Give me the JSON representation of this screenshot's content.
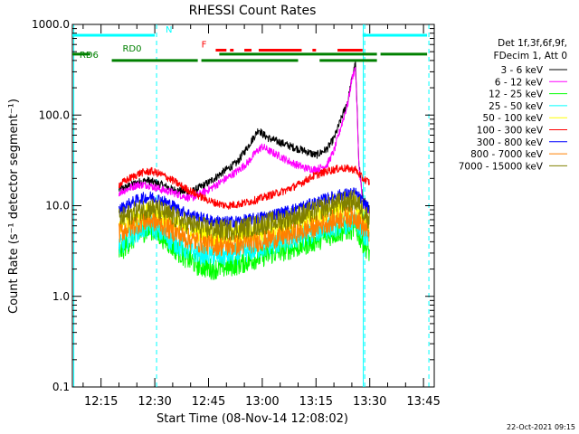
{
  "chart_data": {
    "type": "line",
    "title": "RHESSI Count Rates",
    "xlabel": "Start Time (08-Nov-14 12:08:02)",
    "ylabel": "Count Rate (s⁻¹ detector segment⁻¹)",
    "x_unit": "minutes since 12:00 UT",
    "xlim": [
      727,
      828
    ],
    "ylim": [
      0.1,
      1000
    ],
    "yscale": "log",
    "x_ticks": [
      {
        "t": 735,
        "label": "12:15"
      },
      {
        "t": 750,
        "label": "12:30"
      },
      {
        "t": 765,
        "label": "12:45"
      },
      {
        "t": 780,
        "label": "13:00"
      },
      {
        "t": 795,
        "label": "13:15"
      },
      {
        "t": 810,
        "label": "13:30"
      },
      {
        "t": 825,
        "label": "13:45"
      }
    ],
    "y_ticks": [
      {
        "v": 0.1,
        "label": "0.1"
      },
      {
        "v": 1,
        "label": "1.0"
      },
      {
        "v": 10,
        "label": "10.0"
      },
      {
        "v": 100,
        "label": "100.0"
      },
      {
        "v": 1000,
        "label": "1000.0"
      }
    ],
    "legend": {
      "placement": "right",
      "header": [
        "Det 1f,3f,6f,9f,",
        "FDecim 1, Att 0"
      ]
    },
    "series": [
      {
        "name": "3 - 6 keV",
        "color": "#000000",
        "x": [
          740,
          742,
          745,
          748,
          752,
          755,
          760,
          765,
          770,
          773,
          776,
          778,
          779,
          780,
          782,
          785,
          788,
          792,
          795,
          798,
          800,
          802,
          804,
          805,
          806,
          807,
          808,
          810
        ],
        "y": [
          15,
          16,
          18,
          19,
          17,
          15,
          14,
          18,
          25,
          30,
          45,
          60,
          70,
          62,
          55,
          50,
          45,
          40,
          36,
          42,
          55,
          90,
          150,
          250,
          370,
          30,
          12,
          9
        ]
      },
      {
        "name": "6 - 12 keV",
        "color": "#ff00ff",
        "x": [
          740,
          742,
          745,
          748,
          752,
          755,
          760,
          765,
          770,
          773,
          776,
          778,
          780,
          782,
          785,
          788,
          792,
          795,
          798,
          800,
          802,
          804,
          805,
          806,
          807,
          808,
          810
        ],
        "y": [
          14,
          15,
          17,
          17,
          15,
          14,
          12,
          15,
          20,
          24,
          30,
          38,
          45,
          40,
          35,
          30,
          26,
          25,
          28,
          40,
          75,
          140,
          250,
          340,
          28,
          11,
          8
        ]
      },
      {
        "name": "12 - 25 keV",
        "color": "#00ff00",
        "x": [
          740,
          743,
          746,
          749,
          752,
          755,
          758,
          762,
          766,
          770,
          774,
          778,
          782,
          786,
          790,
          794,
          798,
          802,
          806,
          808,
          810
        ],
        "y": [
          3,
          4,
          5,
          5.5,
          4.5,
          3.5,
          2.8,
          2.2,
          2,
          2.1,
          2.3,
          2.6,
          2.9,
          3.2,
          3.5,
          4,
          4.6,
          5.2,
          5.6,
          4,
          3
        ]
      },
      {
        "name": "25 - 50 keV",
        "color": "#00ffff",
        "x": [
          740,
          743,
          746,
          749,
          752,
          755,
          758,
          762,
          766,
          770,
          774,
          778,
          782,
          786,
          790,
          794,
          798,
          802,
          806,
          808,
          810
        ],
        "y": [
          3.5,
          4.5,
          5.5,
          6,
          5,
          4,
          3.4,
          3,
          2.8,
          2.8,
          3,
          3.3,
          3.6,
          4,
          4.4,
          5,
          5.6,
          6.2,
          6.6,
          5,
          4
        ]
      },
      {
        "name": "50 - 100 keV",
        "color": "#ffff00",
        "x": [
          740,
          743,
          746,
          749,
          752,
          755,
          758,
          762,
          766,
          770,
          774,
          778,
          782,
          786,
          790,
          794,
          798,
          802,
          806,
          808,
          810
        ],
        "y": [
          6,
          7,
          8,
          8.5,
          7.5,
          6.5,
          5.6,
          5,
          4.6,
          4.5,
          4.7,
          5,
          5.4,
          5.8,
          6.4,
          7.2,
          8.2,
          9.2,
          9.8,
          8,
          6
        ]
      },
      {
        "name": "100 - 300 keV",
        "color": "#ff0000",
        "x": [
          740,
          743,
          746,
          749,
          752,
          755,
          758,
          762,
          766,
          770,
          774,
          778,
          782,
          786,
          790,
          794,
          798,
          802,
          806,
          808,
          810
        ],
        "y": [
          17,
          20,
          23,
          24,
          22,
          19,
          16,
          13,
          11,
          10,
          10.5,
          11.5,
          13,
          14.5,
          17,
          21,
          24,
          26,
          25,
          20,
          18
        ]
      },
      {
        "name": "300 - 800 keV",
        "color": "#0000ff",
        "x": [
          740,
          743,
          746,
          749,
          752,
          755,
          758,
          762,
          766,
          770,
          774,
          778,
          782,
          786,
          790,
          794,
          798,
          802,
          806,
          808,
          810
        ],
        "y": [
          9,
          10.5,
          12,
          12.5,
          11.5,
          10,
          8.5,
          7.5,
          6.8,
          6.6,
          6.8,
          7.2,
          7.8,
          8.5,
          9.4,
          10.5,
          12,
          13.2,
          13.8,
          11,
          9
        ]
      },
      {
        "name": "800 - 7000 keV",
        "color": "#ff8000",
        "x": [
          740,
          743,
          746,
          749,
          752,
          755,
          758,
          762,
          766,
          770,
          774,
          778,
          782,
          786,
          790,
          794,
          798,
          802,
          806,
          808,
          810
        ],
        "y": [
          5,
          5.8,
          6.6,
          7,
          6.2,
          5.3,
          4.5,
          4,
          3.7,
          3.6,
          3.7,
          4,
          4.3,
          4.6,
          5.1,
          5.7,
          6.5,
          7.3,
          7.7,
          6,
          5
        ]
      },
      {
        "name": "7000 - 15000 keV",
        "color": "#808000",
        "x": [
          740,
          743,
          746,
          749,
          752,
          755,
          758,
          762,
          766,
          770,
          774,
          778,
          782,
          786,
          790,
          794,
          798,
          802,
          806,
          808,
          810
        ],
        "y": [
          7,
          8,
          9,
          9.5,
          8.6,
          7.6,
          6.6,
          5.9,
          5.5,
          5.4,
          5.6,
          6,
          6.5,
          7,
          7.7,
          8.6,
          9.7,
          10.8,
          11.4,
          9,
          7
        ]
      }
    ],
    "state_bars": [
      {
        "label": "N",
        "color": "#00ffff",
        "level": 760,
        "segments": [
          [
            727,
            750
          ],
          [
            808,
            826
          ]
        ],
        "label_at": 753
      },
      {
        "label": "F",
        "color": "#ff0000",
        "level": 520,
        "segments": [
          [
            767,
            770
          ],
          [
            771,
            772
          ],
          [
            775,
            777
          ],
          [
            779,
            791
          ],
          [
            794,
            795
          ],
          [
            801,
            808
          ]
        ],
        "label_at": 763
      },
      {
        "label": "RD0",
        "color": "#008000",
        "level": 470,
        "segments": [
          [
            727,
            732
          ],
          [
            768,
            812
          ],
          [
            813,
            826
          ]
        ],
        "label_at": 741
      },
      {
        "label": "RD6",
        "color": "#008000",
        "level": 400,
        "segments": [
          [
            738,
            762
          ],
          [
            763,
            790
          ],
          [
            796,
            812
          ]
        ],
        "label_at": 729
      }
    ],
    "vertical_markers": [
      {
        "t": 727.4,
        "color": "#00ffff",
        "style": "solid"
      },
      {
        "t": 750.5,
        "color": "#00ffff",
        "style": "dashed"
      },
      {
        "t": 808.2,
        "color": "#00ffff",
        "style": "solid"
      },
      {
        "t": 808.6,
        "color": "#00ffff",
        "style": "dashed"
      },
      {
        "t": 826.5,
        "color": "#00ffff",
        "style": "dashed"
      }
    ],
    "timestamp": "22-Oct-2021 09:15"
  }
}
